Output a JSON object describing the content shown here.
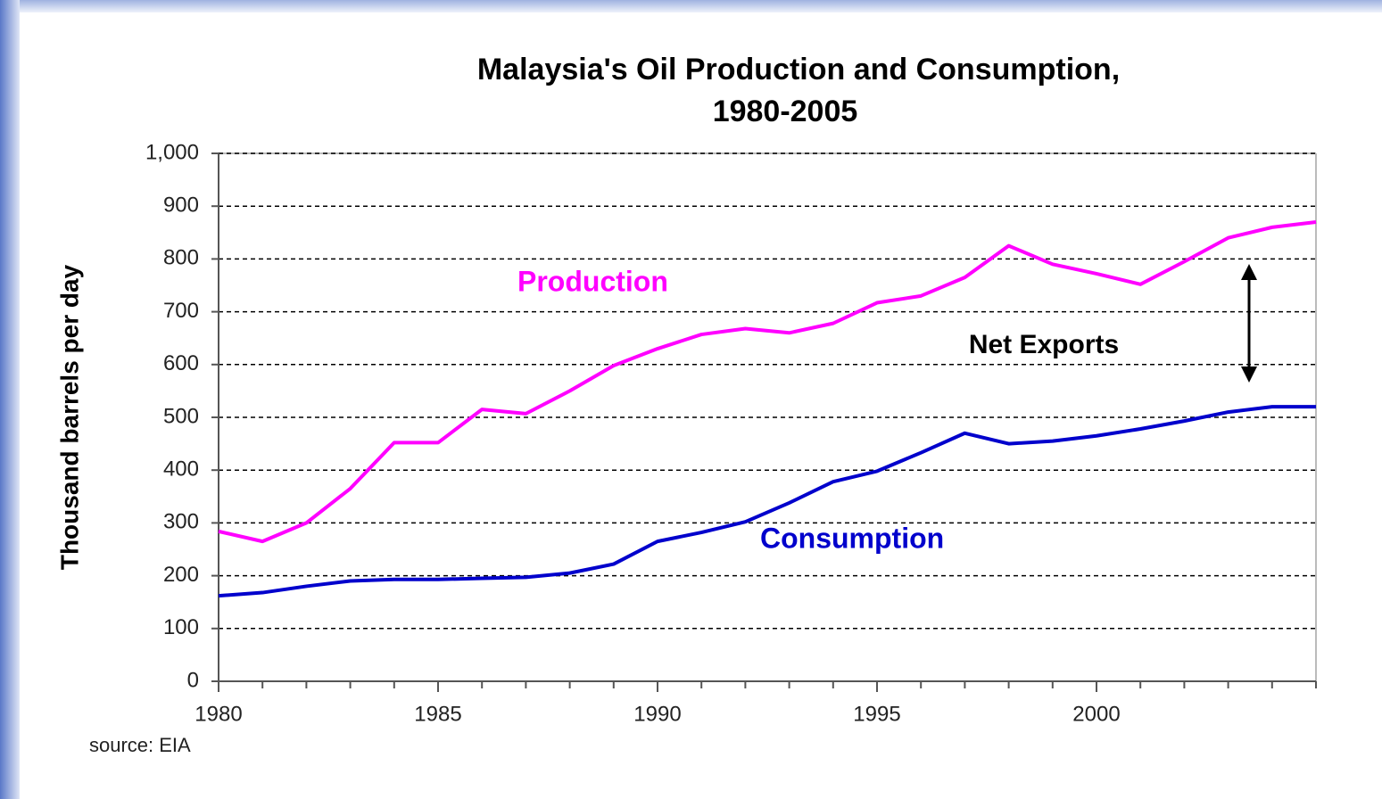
{
  "chart_data": {
    "type": "line",
    "title": [
      "Malaysia's Oil Production and Consumption,",
      "1980-2005"
    ],
    "y_label": "Thousand barrels per day",
    "x": [
      1980,
      1981,
      1982,
      1983,
      1984,
      1985,
      1986,
      1987,
      1988,
      1989,
      1990,
      1991,
      1992,
      1993,
      1994,
      1995,
      1996,
      1997,
      1998,
      1999,
      2000,
      2001,
      2002,
      2003,
      2004,
      2005
    ],
    "series": [
      {
        "name": "Production",
        "color": "#ff00ff",
        "values": [
          284,
          265,
          300,
          365,
          452,
          452,
          515,
          507,
          550,
          598,
          630,
          657,
          668,
          660,
          678,
          717,
          730,
          765,
          825,
          790,
          772,
          752,
          795,
          840,
          860,
          870
        ]
      },
      {
        "name": "Consumption",
        "color": "#0000cc",
        "values": [
          162,
          168,
          180,
          190,
          193,
          193,
          195,
          197,
          205,
          222,
          265,
          282,
          302,
          338,
          378,
          398,
          433,
          470,
          450,
          455,
          465,
          478,
          493,
          510,
          520,
          520
        ]
      }
    ],
    "xlim": [
      1980,
      2005
    ],
    "xticks": [
      1980,
      1985,
      1990,
      1995,
      2000
    ],
    "ylim": [
      0,
      1000
    ],
    "yticks": [
      0,
      100,
      200,
      300,
      400,
      500,
      600,
      700,
      800,
      900,
      {
        "value": 1000,
        "label": "1,000"
      }
    ],
    "grid": true,
    "annotation": "Net Exports",
    "source": "source: EIA"
  }
}
